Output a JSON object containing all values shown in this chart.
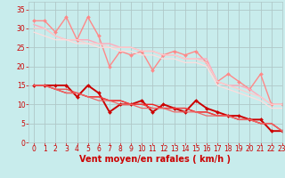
{
  "background_color": "#c8ecec",
  "grid_color": "#b0c8c8",
  "xlabel": "Vent moyen/en rafales ( km/h )",
  "xlabel_color": "#cc0000",
  "xlabel_fontsize": 7,
  "xtick_fontsize": 5.5,
  "ytick_fontsize": 5.5,
  "tick_color": "#cc0000",
  "ylim": [
    0,
    37
  ],
  "xlim": [
    -0.5,
    23
  ],
  "yticks": [
    0,
    5,
    10,
    15,
    20,
    25,
    30,
    35
  ],
  "xticks": [
    0,
    1,
    2,
    3,
    4,
    5,
    6,
    7,
    8,
    9,
    10,
    11,
    12,
    13,
    14,
    15,
    16,
    17,
    18,
    19,
    20,
    21,
    22,
    23
  ],
  "light_lines": [
    {
      "x": [
        0,
        1,
        2,
        3,
        4,
        5,
        6,
        7,
        8,
        9,
        10,
        11,
        12,
        13,
        14,
        15,
        16,
        17,
        18,
        19,
        20,
        21,
        22,
        23
      ],
      "y": [
        32,
        32,
        29,
        33,
        27,
        33,
        28,
        20,
        24,
        23,
        24,
        19,
        23,
        24,
        23,
        24,
        21,
        16,
        18,
        16,
        14,
        18,
        10,
        10
      ],
      "color": "#ff8888",
      "lw": 1.0,
      "marker": "D",
      "markersize": 2.0
    },
    {
      "x": [
        0,
        1,
        2,
        3,
        4,
        5,
        6,
        7,
        8,
        9,
        10,
        11,
        12,
        13,
        14,
        15,
        16,
        17,
        18,
        19,
        20,
        21,
        22,
        23
      ],
      "y": [
        31,
        30,
        28,
        27,
        27,
        27,
        26,
        26,
        25,
        25,
        24,
        24,
        23,
        23,
        22,
        22,
        22,
        16,
        15,
        15,
        14,
        12,
        10,
        10
      ],
      "color": "#ffaabb",
      "lw": 1.0,
      "marker": null
    },
    {
      "x": [
        0,
        1,
        2,
        3,
        4,
        5,
        6,
        7,
        8,
        9,
        10,
        11,
        12,
        13,
        14,
        15,
        16,
        17,
        18,
        19,
        20,
        21,
        22,
        23
      ],
      "y": [
        30,
        30,
        28,
        27,
        27,
        26,
        26,
        25,
        25,
        25,
        24,
        24,
        23,
        23,
        22,
        22,
        21,
        16,
        15,
        14,
        13,
        12,
        10,
        10
      ],
      "color": "#ffcccc",
      "lw": 0.9,
      "marker": null
    },
    {
      "x": [
        0,
        1,
        2,
        3,
        4,
        5,
        6,
        7,
        8,
        9,
        10,
        11,
        12,
        13,
        14,
        15,
        16,
        17,
        18,
        19,
        20,
        21,
        22,
        23
      ],
      "y": [
        29,
        28,
        27,
        27,
        26,
        26,
        25,
        25,
        24,
        24,
        23,
        23,
        22,
        22,
        21,
        21,
        20,
        15,
        14,
        13,
        12,
        11,
        9,
        9
      ],
      "color": "#ffdddd",
      "lw": 0.9,
      "marker": null
    }
  ],
  "dark_lines": [
    {
      "x": [
        0,
        1,
        2,
        3,
        4,
        5,
        6,
        7,
        8,
        9,
        10,
        11,
        12,
        13,
        14,
        15,
        16,
        17,
        18,
        19,
        20,
        21,
        22,
        23
      ],
      "y": [
        15,
        15,
        15,
        15,
        12,
        15,
        13,
        8,
        10,
        10,
        11,
        8,
        10,
        9,
        8,
        11,
        9,
        8,
        7,
        7,
        6,
        6,
        3,
        3
      ],
      "color": "#cc0000",
      "lw": 1.4,
      "marker": "D",
      "markersize": 2.0
    },
    {
      "x": [
        0,
        1,
        2,
        3,
        4,
        5,
        6,
        7,
        8,
        9,
        10,
        11,
        12,
        13,
        14,
        15,
        16,
        17,
        18,
        19,
        20,
        21,
        22,
        23
      ],
      "y": [
        15,
        15,
        14,
        13,
        13,
        12,
        12,
        11,
        11,
        10,
        10,
        10,
        9,
        9,
        9,
        8,
        8,
        7,
        7,
        6,
        6,
        5,
        5,
        3
      ],
      "color": "#ee2222",
      "lw": 1.0,
      "marker": null
    },
    {
      "x": [
        0,
        1,
        2,
        3,
        4,
        5,
        6,
        7,
        8,
        9,
        10,
        11,
        12,
        13,
        14,
        15,
        16,
        17,
        18,
        19,
        20,
        21,
        22,
        23
      ],
      "y": [
        15,
        15,
        14,
        14,
        13,
        12,
        12,
        11,
        11,
        10,
        10,
        9,
        9,
        9,
        9,
        8,
        8,
        7,
        7,
        6,
        6,
        5,
        5,
        3
      ],
      "color": "#ee4444",
      "lw": 0.9,
      "marker": null
    },
    {
      "x": [
        0,
        1,
        2,
        3,
        4,
        5,
        6,
        7,
        8,
        9,
        10,
        11,
        12,
        13,
        14,
        15,
        16,
        17,
        18,
        19,
        20,
        21,
        22,
        23
      ],
      "y": [
        15,
        15,
        14,
        13,
        13,
        12,
        11,
        11,
        10,
        10,
        9,
        9,
        9,
        8,
        8,
        8,
        7,
        7,
        7,
        6,
        6,
        5,
        5,
        3
      ],
      "color": "#ee6666",
      "lw": 0.9,
      "marker": null
    }
  ]
}
